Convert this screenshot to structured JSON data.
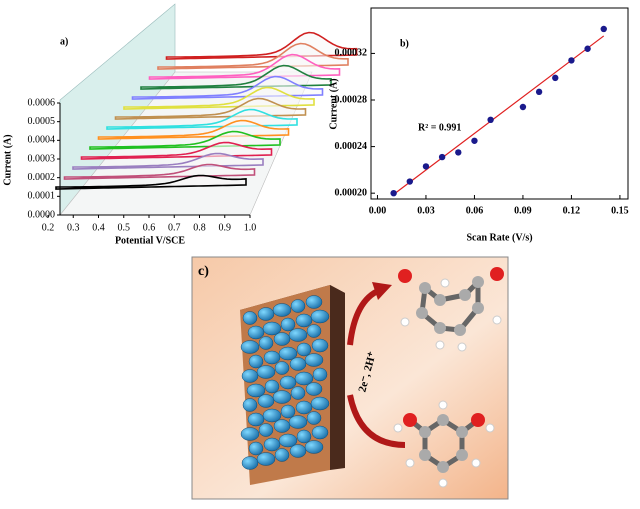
{
  "chart_data": [
    {
      "type": "waterfall",
      "label": "a)",
      "xlabel": "Potential V/SCE",
      "ylabel": "Current (A)",
      "xlim": [
        0.2,
        1.0
      ],
      "xticks": [
        0.2,
        0.3,
        0.4,
        0.5,
        0.6,
        0.7,
        0.8,
        0.9,
        {
          "value": 1.0,
          "label": "1.0"
        }
      ],
      "ylim": [
        0,
        0.0006
      ],
      "yticks": [
        {
          "value": 0,
          "label": "0.0000"
        },
        {
          "value": 0.0001,
          "label": "0.0001"
        },
        {
          "value": 0.0002,
          "label": "0.0002"
        },
        {
          "value": 0.0003,
          "label": "0.0003"
        },
        {
          "value": 0.0004,
          "label": "0.0004"
        },
        {
          "value": 0.0005,
          "label": "0.0005"
        },
        {
          "value": 0.0006,
          "label": "0.0006"
        }
      ]
    },
    {
      "type": "scatter",
      "label": "b)",
      "xlabel": "Scan Rate (V/s)",
      "ylabel": "Current (A)",
      "annotation": "R² = 0.991",
      "x": [
        0.01,
        0.02,
        0.03,
        0.04,
        0.05,
        0.06,
        0.07,
        0.09,
        0.1,
        0.11,
        0.12,
        0.13,
        0.14
      ],
      "values": [
        0.0002,
        0.00021,
        0.000223,
        0.000231,
        0.000235,
        0.000245,
        0.000263,
        0.000274,
        0.000287,
        0.000299,
        0.000314,
        0.000324,
        0.000341
      ],
      "color": "#1a1a8c",
      "fit": {
        "x": [
          0.01,
          0.14
        ],
        "values": [
          0.000199,
          0.000335
        ],
        "color": "#e02020"
      },
      "xlim": [
        -0.004,
        0.155
      ],
      "xticks": [
        {
          "value": 0,
          "label": "0.00"
        },
        {
          "value": 0.03,
          "label": "0.03"
        },
        {
          "value": 0.06,
          "label": "0.06"
        },
        {
          "value": 0.09,
          "label": "0.09"
        },
        {
          "value": 0.12,
          "label": "0.12"
        },
        {
          "value": 0.15,
          "label": "0.15"
        }
      ],
      "ylim": [
        0.000195,
        0.000359
      ],
      "yticks": [
        {
          "value": 0.0002,
          "label": "0.00020"
        },
        {
          "value": 0.00024,
          "label": "0.00024"
        },
        {
          "value": 0.00028,
          "label": "0.00028"
        },
        {
          "value": 0.00032,
          "label": "0.00032"
        }
      ]
    }
  ],
  "illustration": {
    "label": "c)",
    "reaction": "2e⁻, 2H⁺"
  }
}
